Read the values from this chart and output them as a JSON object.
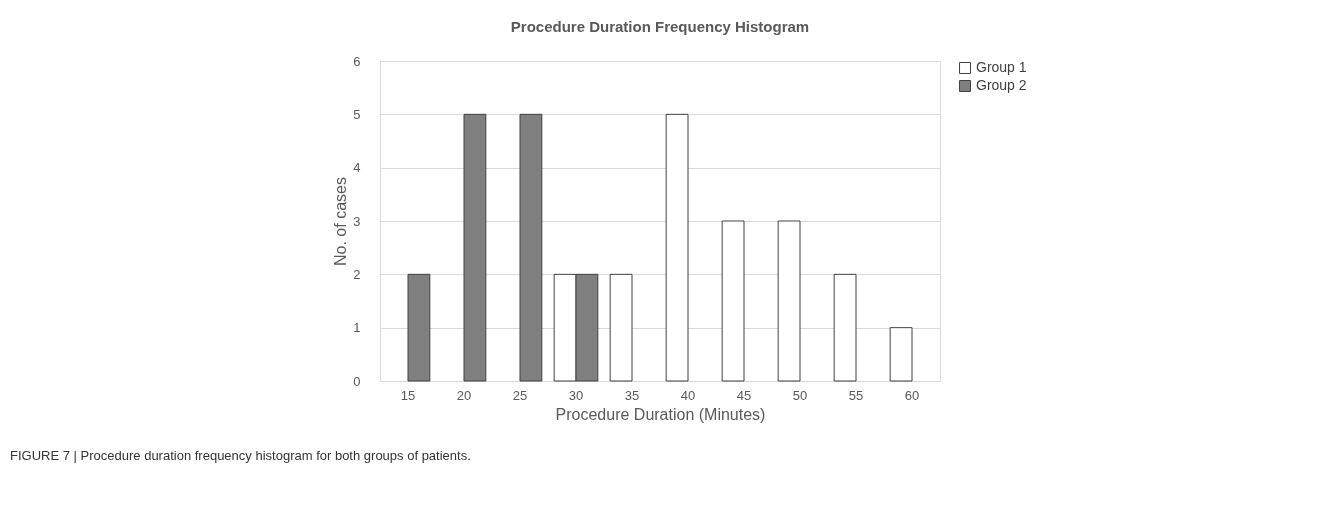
{
  "chart_data": {
    "type": "bar",
    "title": "Procedure Duration Frequency Histogram",
    "xlabel": "Procedure Duration (Minutes)",
    "ylabel": "No. of cases",
    "categories": [
      "15",
      "20",
      "25",
      "30",
      "35",
      "40",
      "45",
      "50",
      "55",
      "60"
    ],
    "series": [
      {
        "name": "Group 1",
        "color": "#ffffff",
        "values": [
          0,
          0,
          0,
          2,
          2,
          5,
          3,
          3,
          2,
          1
        ]
      },
      {
        "name": "Group 2",
        "color": "#808080",
        "values": [
          2,
          5,
          5,
          2,
          0,
          0,
          0,
          0,
          0,
          0
        ]
      }
    ],
    "ylim": [
      0,
      6
    ],
    "yticks": [
      0,
      1,
      2,
      3,
      4,
      5,
      6
    ],
    "grid": "y",
    "legend": "right",
    "annotations": [
      "FIGURE 7 | Procedure duration frequency histogram for both groups of patients."
    ]
  }
}
